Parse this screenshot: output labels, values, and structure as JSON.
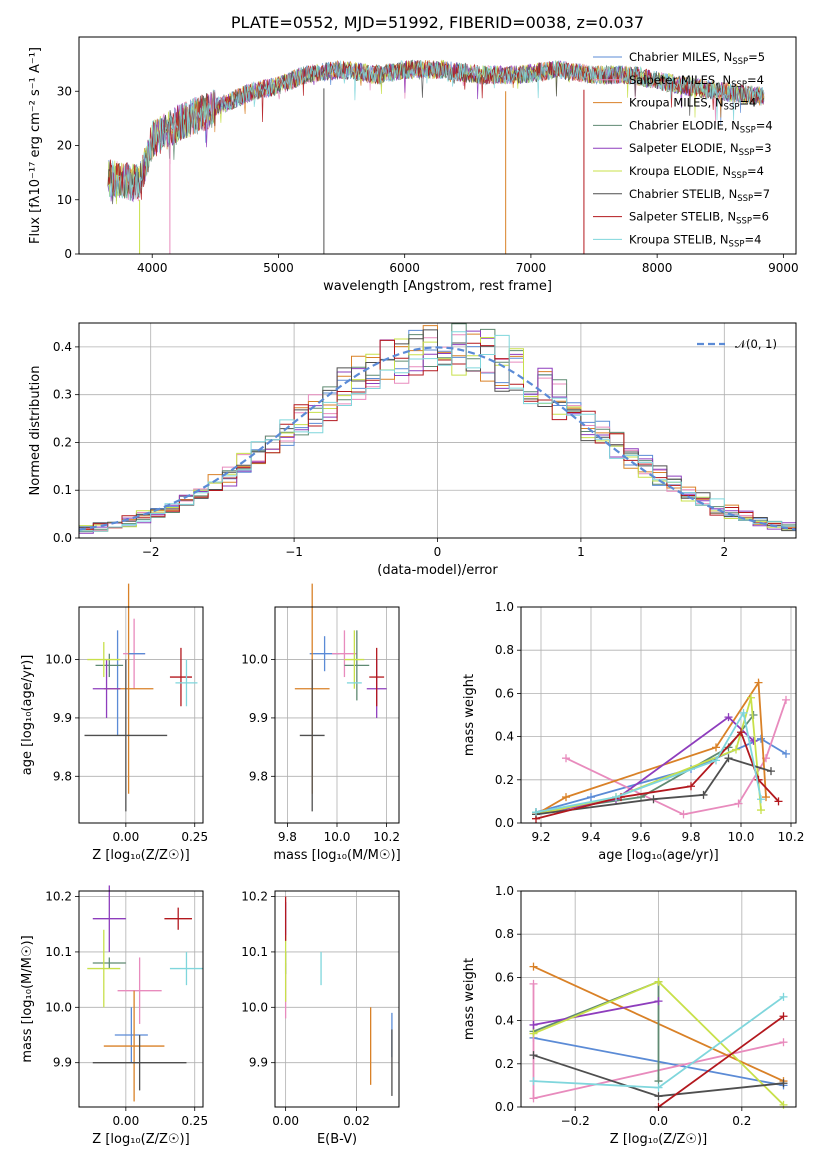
{
  "colors": {
    "chabrier_miles": "#5b8bd6",
    "salpeter_miles": "#e88bbd",
    "kroupa_miles": "#d98127",
    "chabrier_elodie": "#5f8a72",
    "salpeter_elodie": "#8e3dbd",
    "kroupa_elodie": "#c8e04a",
    "chabrier_stelib": "#4f4f4f",
    "salpeter_stelib": "#b3181e",
    "kroupa_stelib": "#7fd6dc"
  },
  "chart_data": [
    {
      "id": "spectrum",
      "type": "line",
      "title": "PLATE=0552, MJD=51992, FIBERID=0038, z=0.037",
      "xlabel": "wavelength [Angstrom, rest frame]",
      "ylabel": "Flux [fλ10⁻¹⁷ erg cm⁻² s⁻¹ A⁻¹]",
      "xlim": [
        3420,
        9100
      ],
      "ylim": [
        0,
        40
      ],
      "xticks": [
        "4000",
        "5000",
        "6000",
        "7000",
        "8000",
        "9000"
      ],
      "yticks": [
        "0",
        "10",
        "20",
        "30"
      ],
      "grid": false,
      "legend_position": "top-right",
      "legend": [
        {
          "label": "Chabrier MILES, N",
          "sub": "SSP",
          "suffix": "=5",
          "color_key": "chabrier_miles"
        },
        {
          "label": "Salpeter MILES, N",
          "sub": "SSP",
          "suffix": "=4",
          "color_key": "salpeter_miles"
        },
        {
          "label": "Kroupa MILES, N",
          "sub": "SSP",
          "suffix": "=4",
          "color_key": "kroupa_miles"
        },
        {
          "label": "Chabrier ELODIE, N",
          "sub": "SSP",
          "suffix": "=4",
          "color_key": "chabrier_elodie"
        },
        {
          "label": "Salpeter ELODIE, N",
          "sub": "SSP",
          "suffix": "=3",
          "color_key": "salpeter_elodie"
        },
        {
          "label": "Kroupa ELODIE, N",
          "sub": "SSP",
          "suffix": "=4",
          "color_key": "kroupa_elodie"
        },
        {
          "label": "Chabrier STELIB, N",
          "sub": "SSP",
          "suffix": "=7",
          "color_key": "chabrier_stelib"
        },
        {
          "label": "Salpeter STELIB, N",
          "sub": "SSP",
          "suffix": "=6",
          "color_key": "salpeter_stelib"
        },
        {
          "label": "Kroupa STELIB, N",
          "sub": "SSP",
          "suffix": "=4",
          "color_key": "kroupa_stelib"
        }
      ],
      "continuum": [
        [
          3650,
          14
        ],
        [
          3900,
          13
        ],
        [
          4000,
          21
        ],
        [
          4200,
          24
        ],
        [
          4500,
          27
        ],
        [
          4800,
          30
        ],
        [
          5000,
          31
        ],
        [
          5200,
          33
        ],
        [
          5500,
          34
        ],
        [
          5800,
          33
        ],
        [
          6000,
          34
        ],
        [
          6300,
          34
        ],
        [
          6600,
          33
        ],
        [
          6900,
          33
        ],
        [
          7200,
          34
        ],
        [
          7500,
          33
        ],
        [
          7800,
          33
        ],
        [
          8200,
          31
        ],
        [
          8500,
          30
        ],
        [
          8850,
          29
        ]
      ],
      "absorption_lines": [
        [
          3900,
          0
        ],
        [
          4140,
          0
        ],
        [
          5360,
          0
        ],
        [
          6800,
          0
        ],
        [
          7420,
          0
        ]
      ]
    },
    {
      "id": "residuals",
      "type": "line",
      "xlabel": "(data-model)/error",
      "ylabel": "Normed distribution",
      "xlim": [
        -2.5,
        2.5
      ],
      "ylim": [
        0,
        0.45
      ],
      "xticks": [
        "−2",
        "−1",
        "0",
        "1",
        "2"
      ],
      "yticks": [
        "0.0",
        "0.1",
        "0.2",
        "0.3",
        "0.4"
      ],
      "grid": true,
      "legend_position": "top-right",
      "legend": [
        {
          "label": "𝒩(0, 1)",
          "color": "#5b8bd6",
          "style": "dashed"
        }
      ],
      "bins": 50,
      "histogram_series": 9
    },
    {
      "id": "age_vs_z",
      "type": "scatter",
      "xlabel": "Z [log₁₀(Z/Z☉)]",
      "ylabel": "age  [log₁₀(age/yr)]",
      "xlim": [
        -0.17,
        0.28
      ],
      "ylim": [
        9.72,
        10.09
      ],
      "xticks": [
        "0.00",
        "0.25"
      ],
      "yticks": [
        "9.8",
        "9.9",
        "10.0"
      ],
      "grid": true,
      "points": [
        {
          "c": "chabrier_miles",
          "x": -0.03,
          "xe": 0.0,
          "y": 9.96,
          "ye": 0.09
        },
        {
          "c": "salpeter_miles",
          "x": 0.03,
          "xe": 0.04,
          "y": 10.01,
          "ye": 0.06
        },
        {
          "c": "kroupa_miles",
          "x": 0.01,
          "xe": 0.09,
          "y": 9.95,
          "ye": 0.18
        },
        {
          "c": "chabrier_elodie",
          "x": -0.06,
          "xe": 0.05,
          "y": 9.99,
          "ye": 0.02
        },
        {
          "c": "salpeter_elodie",
          "x": -0.07,
          "xe": 0.05,
          "y": 9.95,
          "ye": 0.05
        },
        {
          "c": "kroupa_elodie",
          "x": -0.08,
          "xe": 0.06,
          "y": 10.0,
          "ye": 0.03
        },
        {
          "c": "chabrier_stelib",
          "x": 0.0,
          "xe": 0.15,
          "y": 9.87,
          "ye": 0.13
        },
        {
          "c": "salpeter_stelib",
          "x": 0.2,
          "xe": 0.04,
          "y": 9.97,
          "ye": 0.05
        },
        {
          "c": "kroupa_stelib",
          "x": 0.22,
          "xe": 0.04,
          "y": 9.96,
          "ye": 0.04
        },
        {
          "c": "chabrier_miles",
          "x": 0.04,
          "xe": 0.03,
          "y": 10.01,
          "ye": 0.0
        }
      ]
    },
    {
      "id": "age_vs_mass",
      "type": "scatter",
      "xlabel": "mass [log₁₀(M/M☉)]",
      "ylabel": "",
      "xlim": [
        9.75,
        10.25
      ],
      "ylim": [
        9.72,
        10.09
      ],
      "xticks": [
        "9.8",
        "10.0",
        "10.2"
      ],
      "yticks": [
        "9.8",
        "9.9",
        "10.0"
      ],
      "grid": true,
      "points": [
        {
          "c": "chabrier_miles",
          "x": 9.95,
          "xe": 0.06,
          "y": 10.01,
          "ye": 0.03
        },
        {
          "c": "salpeter_miles",
          "x": 10.03,
          "xe": 0.05,
          "y": 10.01,
          "ye": 0.04
        },
        {
          "c": "kroupa_miles",
          "x": 9.9,
          "xe": 0.07,
          "y": 9.95,
          "ye": 0.18
        },
        {
          "c": "chabrier_elodie",
          "x": 10.08,
          "xe": 0.05,
          "y": 9.99,
          "ye": 0.06
        },
        {
          "c": "salpeter_elodie",
          "x": 10.16,
          "xe": 0.04,
          "y": 9.95,
          "ye": 0.05
        },
        {
          "c": "kroupa_elodie",
          "x": 10.07,
          "xe": 0.04,
          "y": 10.0,
          "ye": 0.05
        },
        {
          "c": "chabrier_stelib",
          "x": 9.9,
          "xe": 0.05,
          "y": 9.87,
          "ye": 0.13
        },
        {
          "c": "salpeter_stelib",
          "x": 10.16,
          "xe": 0.03,
          "y": 9.97,
          "ye": 0.05
        },
        {
          "c": "kroupa_stelib",
          "x": 10.07,
          "xe": 0.03,
          "y": 9.96,
          "ye": 0.0
        }
      ]
    },
    {
      "id": "weight_vs_age",
      "type": "line",
      "xlabel": "age  [log₁₀(age/yr)]",
      "ylabel": "mass weight",
      "xlim": [
        9.12,
        10.22
      ],
      "ylim": [
        0,
        1
      ],
      "xticks": [
        "9.2",
        "9.4",
        "9.6",
        "9.8",
        "10.0",
        "10.2"
      ],
      "yticks": [
        "0.0",
        "0.2",
        "0.4",
        "0.6",
        "0.8",
        "1.0"
      ],
      "grid": true,
      "series": [
        {
          "c": "chabrier_miles",
          "x": [
            9.18,
            9.4,
            9.8,
            10.08,
            10.18
          ],
          "y": [
            0.05,
            0.12,
            0.25,
            0.39,
            0.32
          ]
        },
        {
          "c": "salpeter_miles",
          "x": [
            9.3,
            9.77,
            9.99,
            10.1,
            10.18
          ],
          "y": [
            0.3,
            0.04,
            0.09,
            0.3,
            0.57
          ]
        },
        {
          "c": "kroupa_miles",
          "x": [
            9.18,
            9.3,
            9.9,
            10.07,
            10.1
          ],
          "y": [
            0.04,
            0.12,
            0.35,
            0.65,
            0.12
          ]
        },
        {
          "c": "chabrier_elodie",
          "x": [
            9.18,
            9.6,
            9.95,
            10.05
          ],
          "y": [
            0.05,
            0.12,
            0.35,
            0.5
          ]
        },
        {
          "c": "salpeter_elodie",
          "x": [
            9.18,
            9.5,
            9.95,
            10.05
          ],
          "y": [
            0.04,
            0.11,
            0.49,
            0.38
          ]
        },
        {
          "c": "kroupa_elodie",
          "x": [
            9.18,
            9.5,
            9.98,
            10.04,
            10.08
          ],
          "y": [
            0.04,
            0.12,
            0.34,
            0.58,
            0.06
          ]
        },
        {
          "c": "chabrier_stelib",
          "x": [
            9.18,
            9.65,
            9.85,
            9.95,
            10.12
          ],
          "y": [
            0.04,
            0.11,
            0.13,
            0.3,
            0.24
          ]
        },
        {
          "c": "salpeter_stelib",
          "x": [
            9.18,
            9.52,
            9.8,
            10.0,
            10.07,
            10.15
          ],
          "y": [
            0.02,
            0.12,
            0.17,
            0.42,
            0.2,
            0.1
          ]
        },
        {
          "c": "kroupa_stelib",
          "x": [
            9.18,
            9.5,
            9.9,
            10.01,
            10.08
          ],
          "y": [
            0.05,
            0.12,
            0.29,
            0.51,
            0.11
          ]
        }
      ]
    },
    {
      "id": "mass_vs_z",
      "type": "scatter",
      "xlabel": "Z [log₁₀(Z/Z☉)]",
      "ylabel": "mass [log₁₀(M/M☉)]",
      "xlim": [
        -0.17,
        0.28
      ],
      "ylim": [
        9.82,
        10.21
      ],
      "xticks": [
        "0.00",
        "0.25"
      ],
      "yticks": [
        "9.9",
        "10.0",
        "10.1",
        "10.2"
      ],
      "grid": true,
      "points": [
        {
          "c": "chabrier_miles",
          "x": 0.02,
          "xe": 0.06,
          "y": 9.95,
          "ye": 0.05
        },
        {
          "c": "salpeter_miles",
          "x": 0.05,
          "xe": 0.08,
          "y": 10.03,
          "ye": 0.06
        },
        {
          "c": "kroupa_miles",
          "x": 0.03,
          "xe": 0.11,
          "y": 9.93,
          "ye": 0.1
        },
        {
          "c": "chabrier_elodie",
          "x": -0.06,
          "xe": 0.06,
          "y": 10.08,
          "ye": 0.01
        },
        {
          "c": "salpeter_elodie",
          "x": -0.06,
          "xe": 0.06,
          "y": 10.16,
          "ye": 0.06
        },
        {
          "c": "kroupa_elodie",
          "x": -0.08,
          "xe": 0.06,
          "y": 10.07,
          "ye": 0.07
        },
        {
          "c": "chabrier_stelib",
          "x": 0.05,
          "xe": 0.17,
          "y": 9.9,
          "ye": 0.05
        },
        {
          "c": "salpeter_stelib",
          "x": 0.19,
          "xe": 0.05,
          "y": 10.16,
          "ye": 0.02
        },
        {
          "c": "kroupa_stelib",
          "x": 0.22,
          "xe": 0.06,
          "y": 10.07,
          "ye": 0.03
        }
      ]
    },
    {
      "id": "mass_vs_ebv",
      "type": "scatter",
      "xlabel": "E(B-V)",
      "ylabel": "",
      "xlim": [
        -0.003,
        0.032
      ],
      "ylim": [
        9.82,
        10.21
      ],
      "xticks": [
        "0.00",
        "0.02"
      ],
      "yticks": [
        "9.9",
        "10.0",
        "10.1",
        "10.2"
      ],
      "grid": true,
      "points": [
        {
          "c": "chabrier_miles",
          "x": 0.03,
          "xe": 0.0,
          "y": 9.95,
          "ye": 0.04
        },
        {
          "c": "salpeter_miles",
          "x": 0.0,
          "xe": 0.0,
          "y": 10.03,
          "ye": 0.05
        },
        {
          "c": "kroupa_miles",
          "x": 0.024,
          "xe": 0.0,
          "y": 9.93,
          "ye": 0.07
        },
        {
          "c": "chabrier_elodie",
          "x": 0.0,
          "xe": 0.0,
          "y": 10.08,
          "ye": 0.02
        },
        {
          "c": "salpeter_elodie",
          "x": 0.0,
          "xe": 0.0,
          "y": 10.16,
          "ye": 0.03
        },
        {
          "c": "kroupa_elodie",
          "x": 0.0,
          "xe": 0.0,
          "y": 10.07,
          "ye": 0.06
        },
        {
          "c": "chabrier_stelib",
          "x": 0.03,
          "xe": 0.0,
          "y": 9.9,
          "ye": 0.06
        },
        {
          "c": "salpeter_stelib",
          "x": 0.0,
          "xe": 0.0,
          "y": 10.16,
          "ye": 0.04
        },
        {
          "c": "kroupa_stelib",
          "x": 0.01,
          "xe": 0.0,
          "y": 10.07,
          "ye": 0.03
        }
      ]
    },
    {
      "id": "weight_vs_z",
      "type": "line",
      "xlabel": "Z [log₁₀(Z/Z☉)]",
      "ylabel": "mass weight",
      "xlim": [
        -0.33,
        0.33
      ],
      "ylim": [
        0,
        1
      ],
      "xticks": [
        "−0.2",
        "0.0",
        "0.2"
      ],
      "yticks": [
        "0.0",
        "0.2",
        "0.4",
        "0.6",
        "0.8",
        "1.0"
      ],
      "grid": true,
      "series": [
        {
          "c": "chabrier_miles",
          "x": [
            -0.3,
            0.3
          ],
          "y": [
            0.32,
            0.1
          ]
        },
        {
          "c": "salpeter_miles",
          "x": [
            -0.3,
            -0.3,
            0.3
          ],
          "y": [
            0.57,
            0.04,
            0.3
          ]
        },
        {
          "c": "kroupa_miles",
          "x": [
            -0.3,
            0.3
          ],
          "y": [
            0.65,
            0.12
          ]
        },
        {
          "c": "chabrier_elodie",
          "x": [
            -0.3,
            0.0,
            0.0
          ],
          "y": [
            0.35,
            0.58,
            0.12
          ]
        },
        {
          "c": "salpeter_elodie",
          "x": [
            -0.3,
            0.0
          ],
          "y": [
            0.38,
            0.49
          ]
        },
        {
          "c": "kroupa_elodie",
          "x": [
            -0.3,
            0.0,
            0.3
          ],
          "y": [
            0.34,
            0.58,
            0.01
          ]
        },
        {
          "c": "chabrier_stelib",
          "x": [
            -0.3,
            0.0,
            0.3
          ],
          "y": [
            0.24,
            0.05,
            0.11
          ]
        },
        {
          "c": "salpeter_stelib",
          "x": [
            0.0,
            0.3
          ],
          "y": [
            0.0,
            0.42
          ]
        },
        {
          "c": "kroupa_stelib",
          "x": [
            -0.3,
            0.0,
            0.3
          ],
          "y": [
            0.12,
            0.09,
            0.51
          ]
        }
      ]
    }
  ]
}
